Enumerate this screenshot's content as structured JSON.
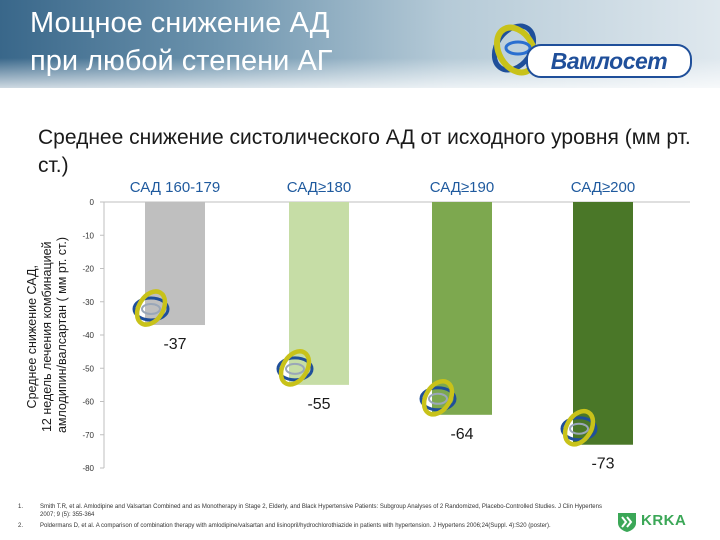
{
  "slide": {
    "title_lines": [
      "Мощное снижение АД",
      "при любой степени АГ"
    ],
    "brand": "Вамлосет",
    "subtitle": "Среднее снижение систолического АД от исходного уровня (мм рт. ст.)",
    "footnotes": [
      {
        "num": "1.",
        "text": "Smith T.R, et al. Amlodipine and Valsartan Combined and as Monotherapy in Stage 2, Elderly, and Black Hypertensive Patients: Subgroup Analyses of 2 Randomized, Placebo-Controlled Studies. J Clin Hypertens 2007; 9 (5): 355-364"
      },
      {
        "num": "2.",
        "text": "Poldermans D, et al. A comparison of combination therapy with amlodipine/valsartan and lisinopril/hydrochlorothiazide in patients with hypertension. J Hypertens 2006;24(Suppl. 4):S20 (poster)."
      }
    ],
    "company": "KRKA"
  },
  "chart_data": {
    "type": "bar",
    "categories": [
      "САД 160-179",
      "САД≥180",
      "САД≥190",
      "САД≥200"
    ],
    "values": [
      -37,
      -55,
      -64,
      -73
    ],
    "value_labels": [
      "-37",
      "-55",
      "-64",
      "-73"
    ],
    "bar_colors": [
      "#bfbfbf",
      "#c6dda6",
      "#7da84f",
      "#4a7728"
    ],
    "ylabel_lines": [
      "Среднее снижение САД,",
      "12 недель лечения комбинацией",
      "амлодипин/валсартан ( мм рт. ст.)"
    ],
    "ylim": [
      -80,
      0
    ],
    "yticks": [
      0,
      -10,
      -20,
      -30,
      -40,
      -50,
      -60,
      -70,
      -80
    ],
    "ytick_labels": [
      "0",
      "-10",
      "-20",
      "-30",
      "-40",
      "-50",
      "-60",
      "-70",
      "-80"
    ],
    "grid": false,
    "legend": "none"
  }
}
